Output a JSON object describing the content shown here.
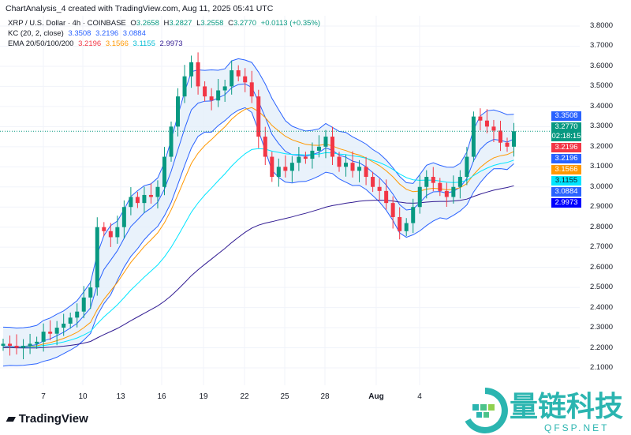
{
  "header": {
    "title": "ChartAnalysis_4 created with TradingView.com, Aug 11, 2025 05:41 UTC"
  },
  "legend": {
    "symbol": "XRP / U.S. Dollar · 4h · COINBASE",
    "o_label": "O",
    "o": "3.2658",
    "h_label": "H",
    "h": "3.2827",
    "l_label": "L",
    "l": "3.2558",
    "c_label": "C",
    "c": "3.2770",
    "change": "+0.0113 (+0.35%)",
    "kc_label": "KC (20, 2, close)",
    "kc": [
      "3.3508",
      "3.2196",
      "3.0884"
    ],
    "ema_label": "EMA 20/50/100/200",
    "ema": [
      "3.2196",
      "3.1566",
      "3.1155",
      "2.9973"
    ]
  },
  "colors": {
    "up": "#089981",
    "down": "#f23645",
    "kc": "#2962ff",
    "kc_fill": "#e3effa",
    "ema20": "#f23645",
    "ema50": "#ff9800",
    "ema100": "#00e5ff",
    "ema200": "#311b92"
  },
  "badges": [
    {
      "text": "3.3508",
      "color": "#2962ff"
    },
    {
      "text": "3.2770",
      "sub": "02:18:15",
      "color": "#089981"
    },
    {
      "text": "3.2196",
      "color": "#f23645"
    },
    {
      "text": "3.2196",
      "color": "#2962ff"
    },
    {
      "text": "3.1566",
      "color": "#ff9800"
    },
    {
      "text": "3.1155",
      "color": "#00e5ff"
    },
    {
      "text": "3.0884",
      "color": "#2962ff"
    },
    {
      "text": "2.9973",
      "color": "#0000ff"
    }
  ],
  "chart_data": {
    "type": "candlestick",
    "interval": "4h",
    "yticks": [
      "3.8000",
      "3.7000",
      "3.6000",
      "3.5000",
      "3.4000",
      "3.3000",
      "3.2000",
      "3.1000",
      "3.0000",
      "2.9000",
      "2.8000",
      "2.7000",
      "2.6000",
      "2.5000",
      "2.4000",
      "2.3000",
      "2.2000",
      "2.1000"
    ],
    "ylim": [
      2.1,
      3.8
    ],
    "xticks": [
      "7",
      "10",
      "13",
      "16",
      "19",
      "22",
      "25",
      "28",
      "Aug",
      "4"
    ],
    "x_start": "2025-07-04",
    "x_step_hours": 12,
    "closes": [
      2.22,
      2.21,
      2.2,
      2.21,
      2.22,
      2.23,
      2.28,
      2.27,
      2.3,
      2.32,
      2.35,
      2.38,
      2.45,
      2.5,
      2.8,
      2.78,
      2.75,
      2.8,
      2.9,
      2.95,
      2.92,
      2.96,
      2.95,
      3.0,
      3.15,
      3.3,
      3.45,
      3.55,
      3.62,
      3.5,
      3.45,
      3.43,
      3.48,
      3.5,
      3.58,
      3.55,
      3.52,
      3.45,
      3.25,
      3.15,
      3.05,
      3.1,
      3.08,
      3.12,
      3.15,
      3.14,
      3.18,
      3.2,
      3.25,
      3.15,
      3.1,
      3.12,
      3.08,
      3.1,
      3.05,
      3.0,
      2.98,
      2.92,
      2.85,
      2.78,
      2.82,
      2.9,
      3.0,
      3.05,
      3.02,
      2.98,
      2.95,
      3.0,
      3.05,
      3.15,
      3.35,
      3.33,
      3.3,
      3.28,
      3.22,
      3.2,
      3.277
    ],
    "last_price": 3.277
  },
  "footer": {
    "logo": "TradingView"
  },
  "watermark": {
    "text": "量链科技",
    "sub": "QFSP.NET"
  }
}
